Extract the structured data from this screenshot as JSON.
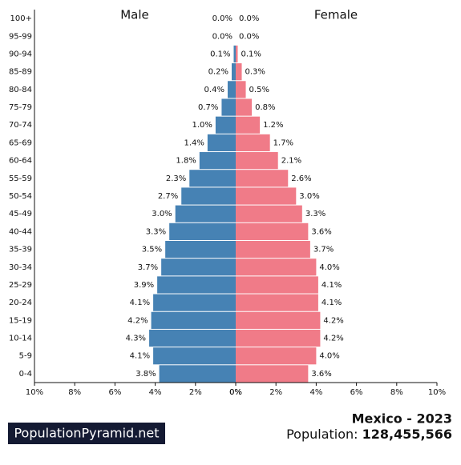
{
  "chart_data": {
    "type": "pyramid",
    "categories": [
      "100+",
      "95-99",
      "90-94",
      "85-89",
      "80-84",
      "75-79",
      "70-74",
      "65-69",
      "60-64",
      "55-59",
      "50-54",
      "45-49",
      "40-44",
      "35-39",
      "30-34",
      "25-29",
      "20-24",
      "15-19",
      "10-14",
      "5-9",
      "0-4"
    ],
    "series": [
      {
        "name": "Male",
        "color": "#4682b4",
        "values": [
          0.0,
          0.0,
          0.1,
          0.2,
          0.4,
          0.7,
          1.0,
          1.4,
          1.8,
          2.3,
          2.7,
          3.0,
          3.3,
          3.5,
          3.7,
          3.9,
          4.1,
          4.2,
          4.3,
          4.1,
          3.8
        ],
        "value_labels": [
          "0.0%",
          "0.0%",
          "0.1%",
          "0.2%",
          "0.4%",
          "0.7%",
          "1.0%",
          "1.4%",
          "1.8%",
          "2.3%",
          "2.7%",
          "3.0%",
          "3.3%",
          "3.5%",
          "3.7%",
          "3.9%",
          "4.1%",
          "4.2%",
          "4.3%",
          "4.1%",
          "3.8%"
        ]
      },
      {
        "name": "Female",
        "color": "#f07b88",
        "values": [
          0.0,
          0.0,
          0.1,
          0.3,
          0.5,
          0.8,
          1.2,
          1.7,
          2.1,
          2.6,
          3.0,
          3.3,
          3.6,
          3.7,
          4.0,
          4.1,
          4.1,
          4.2,
          4.2,
          4.0,
          3.6
        ],
        "value_labels": [
          "0.0%",
          "0.0%",
          "0.1%",
          "0.3%",
          "0.5%",
          "0.8%",
          "1.2%",
          "1.7%",
          "2.1%",
          "2.6%",
          "3.0%",
          "3.3%",
          "3.6%",
          "3.7%",
          "4.0%",
          "4.1%",
          "4.1%",
          "4.2%",
          "4.2%",
          "4.0%",
          "3.6%"
        ]
      }
    ],
    "xlim": [
      0,
      10
    ],
    "xticks": [
      {
        "value": 0,
        "label": "0%"
      },
      {
        "value": 2,
        "label": "2%"
      },
      {
        "value": 4,
        "label": "4%"
      },
      {
        "value": 6,
        "label": "6%"
      },
      {
        "value": 8,
        "label": "8%"
      },
      {
        "value": 10,
        "label": "10%"
      }
    ]
  },
  "footer": {
    "brand": "PopulationPyramid.net",
    "country": "Mexico - 2023",
    "population_label": "Population:",
    "population": "128,455,566"
  }
}
